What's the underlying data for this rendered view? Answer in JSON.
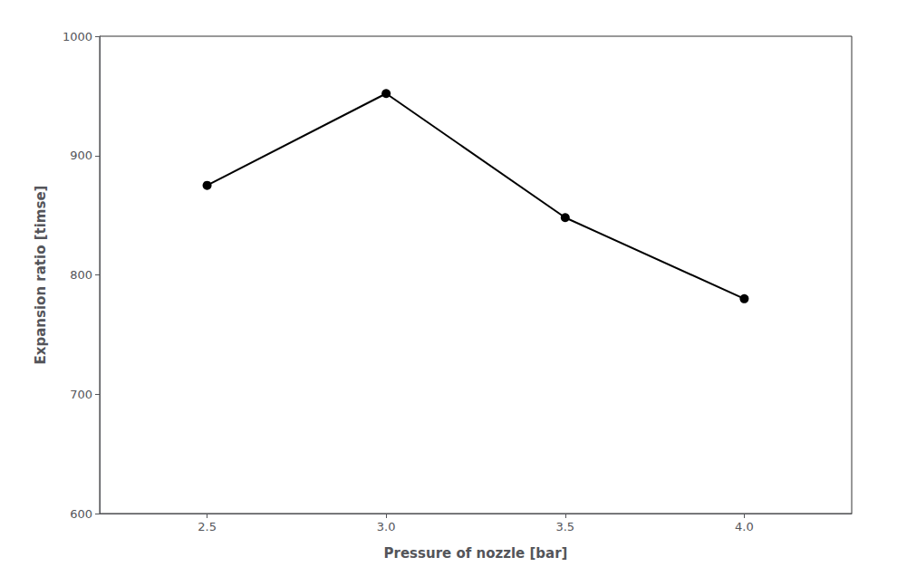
{
  "chart_data": {
    "type": "line",
    "x": [
      2.5,
      3.0,
      3.5,
      4.0
    ],
    "values": [
      875,
      952,
      848,
      780
    ],
    "xlabel": "Pressure of nozzle [bar]",
    "ylabel": "Expansion ratio [timse]",
    "xlim": [
      2.2,
      4.3
    ],
    "ylim": [
      600,
      1000
    ],
    "xticks": [
      2.5,
      {
        "value": 3.0,
        "label": "3.0"
      },
      3.5,
      {
        "value": 4.0,
        "label": "4.0"
      }
    ],
    "yticks": [
      600,
      700,
      800,
      900,
      1000
    ],
    "color": "#000000",
    "marker": "circle",
    "grid": false
  }
}
